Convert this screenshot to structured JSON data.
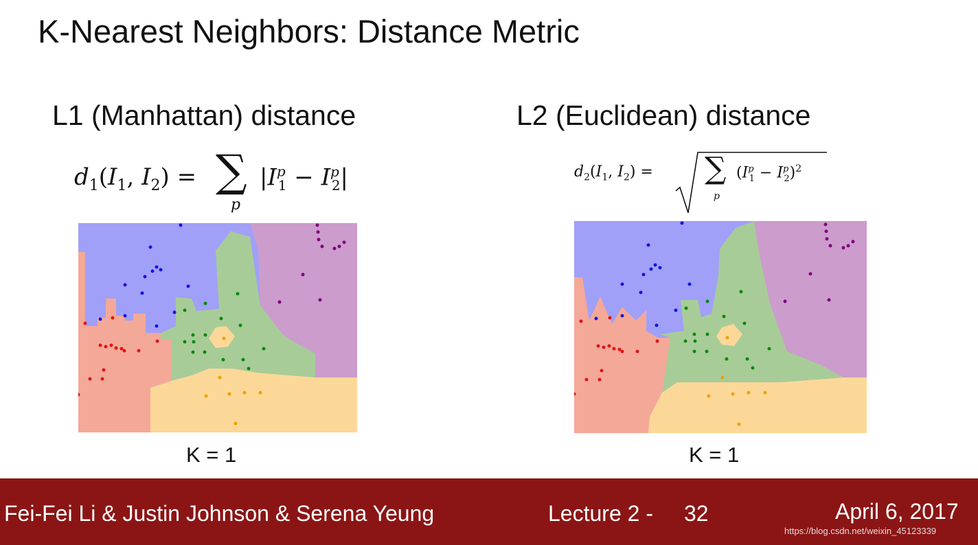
{
  "slide": {
    "title": "K-Nearest Neighbors: Distance Metric",
    "left": {
      "heading": "L1 (Manhattan) distance",
      "k_label": "K = 1"
    },
    "right": {
      "heading": "L2 (Euclidean) distance",
      "k_label": "K = 1"
    }
  },
  "footer": {
    "authors": "Fei-Fei Li & Justin Johnson & Serena Yeung",
    "lecture": "Lecture 2 -",
    "page": "32",
    "date": "April 6, 2017",
    "watermark": "https://blog.csdn.net/weixin_45123339"
  },
  "colors": {
    "footer_bg": "#8b1515",
    "region_blue": "#a0a0f8",
    "region_red": "#f4a898",
    "region_green": "#a8cc98",
    "region_orange": "#fcd898",
    "region_purple": "#cc9ccc"
  }
}
